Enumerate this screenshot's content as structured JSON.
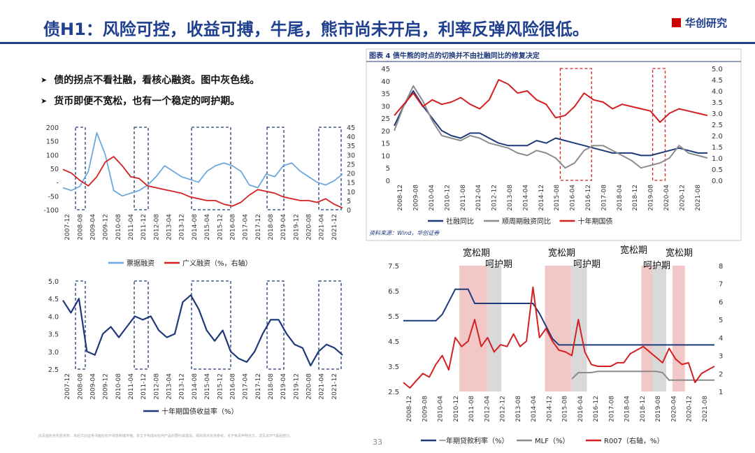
{
  "header": {
    "title": "债H1：风险可控，收益可搏，牛尾，熊市尚未开启，利率反弹风险很低。",
    "brand": "华创研究"
  },
  "bullets": [
    "债的拐点不看社融，看核心融资。图中灰色线。",
    "货币即便不宽松，也有一个稳定的呵护期。"
  ],
  "footer": {
    "disclaimer": "此页面包含机密资料，未经华创证券书面授权不得复制或传播。本文不构成对任何产品的要约或邀请，相关观点仅供参考。关于免责声明全文，详见本PPT最后部分。",
    "page": "33"
  },
  "colors": {
    "dark_blue": "#1f3a7a",
    "light_blue": "#6fa8dc",
    "red": "#d42020",
    "gray": "#8c8c8c",
    "shade_red": "#f2c7c7",
    "shade_gray": "#d9d9d9"
  },
  "chart_data": [
    {
      "id": "top-left",
      "type": "line",
      "x_ticks": [
        "2007-12",
        "2008-08",
        "2009-04",
        "2009-12",
        "2010-08",
        "2011-04",
        "2011-12",
        "2012-08",
        "2013-04",
        "2013-12",
        "2014-08",
        "2015-04",
        "2015-12",
        "2016-08",
        "2017-04",
        "2017-12",
        "2018-08",
        "2019-04",
        "2019-12",
        "2020-08",
        "2021-04",
        "2021-12"
      ],
      "ylim_left": [
        -100,
        200
      ],
      "yticks_left": [
        "200",
        "150",
        "100",
        "50",
        "-",
        "-50",
        "-100"
      ],
      "ylim_right": [
        0,
        45
      ],
      "yticks_right": [
        "45",
        "40",
        "35",
        "30",
        "25",
        "20",
        "15",
        "10",
        "5",
        "0"
      ],
      "series": [
        {
          "name": "票据融资",
          "axis": "left",
          "color": "#6fa8dc",
          "values": [
            -20,
            -30,
            -15,
            40,
            180,
            100,
            -30,
            -50,
            -40,
            -30,
            -10,
            20,
            60,
            40,
            20,
            10,
            0,
            40,
            60,
            70,
            60,
            40,
            -10,
            -20,
            30,
            20,
            60,
            70,
            40,
            20,
            0,
            -10,
            5,
            30
          ]
        },
        {
          "name": "广义融资（%，右轴）",
          "axis": "right",
          "color": "#d42020",
          "values": [
            22,
            20,
            16,
            13,
            18,
            26,
            29,
            24,
            18,
            17,
            13,
            12,
            11,
            10,
            9,
            7,
            6,
            5,
            5,
            3,
            2,
            4,
            8,
            11,
            10,
            9,
            7,
            6,
            5,
            5,
            4,
            6,
            3,
            1
          ]
        }
      ]
    },
    {
      "id": "bottom-left",
      "type": "line",
      "x_ticks": [
        "2007-12",
        "2008-08",
        "2009-04",
        "2009-12",
        "2010-08",
        "2011-04",
        "2011-12",
        "2012-08",
        "2013-04",
        "2013-12",
        "2014-08",
        "2015-04",
        "2015-12",
        "2016-08",
        "2017-04",
        "2017-12",
        "2018-08",
        "2019-04",
        "2019-12",
        "2020-08",
        "2021-04",
        "2021-12"
      ],
      "ylim": [
        2.5,
        5.0
      ],
      "yticks": [
        "5.0",
        "4.5",
        "4.0",
        "3.5",
        "3.0",
        "2.5"
      ],
      "series": [
        {
          "name": "十年期国债收益率（%）",
          "color": "#1f3a7a",
          "values": [
            4.45,
            4.1,
            4.5,
            3.0,
            2.9,
            3.5,
            3.7,
            3.4,
            3.7,
            4.0,
            3.9,
            4.0,
            3.6,
            3.4,
            3.5,
            4.4,
            4.6,
            4.2,
            3.6,
            3.3,
            3.6,
            3.0,
            2.8,
            2.7,
            3.0,
            3.5,
            3.9,
            3.9,
            3.5,
            3.2,
            3.1,
            2.6,
            3.0,
            3.2,
            3.1,
            2.9
          ]
        }
      ]
    },
    {
      "id": "top-right",
      "type": "line",
      "title": "图表 4  债牛熊的时点的切换并不由社融同比的修复决定",
      "source": "资料来源：Wind，华创证券",
      "x_ticks": [
        "2008-12",
        "2009-08",
        "2010-04",
        "2010-12",
        "2011-08",
        "2012-04",
        "2012-12",
        "2013-08",
        "2014-04",
        "2014-12",
        "2015-08",
        "2016-04",
        "2016-12",
        "2017-08",
        "2018-04",
        "2018-12",
        "2019-08",
        "2020-04",
        "2020-12",
        "2021-08"
      ],
      "ylim_left": [
        0,
        45
      ],
      "yticks_left": [
        "45",
        "40",
        "35",
        "30",
        "25",
        "20",
        "15",
        "10",
        "5",
        "0"
      ],
      "ylim_right": [
        0,
        5.0
      ],
      "yticks_right": [
        "5.0",
        "4.5",
        "4.0",
        "3.5",
        "3.0",
        "2.5",
        "2.0",
        "1.5",
        "1.0",
        "0.5",
        "0.0"
      ],
      "series": [
        {
          "name": "社融同比",
          "axis": "left",
          "color": "#1f3a7a",
          "values": [
            22,
            30,
            36,
            30,
            25,
            20,
            18,
            17,
            19,
            19,
            17,
            15,
            14,
            14,
            14,
            16,
            15,
            17,
            16,
            15,
            14,
            13,
            12,
            11,
            11,
            11,
            10,
            10,
            11,
            12,
            13,
            12,
            11,
            11
          ]
        },
        {
          "name": "顺周期融资同比",
          "axis": "left",
          "color": "#8c8c8c",
          "values": [
            20,
            30,
            38,
            32,
            24,
            18,
            17,
            16,
            18,
            17,
            15,
            14,
            13,
            11,
            10,
            12,
            11,
            9,
            5,
            7,
            12,
            14,
            14,
            12,
            10,
            8,
            5,
            6,
            7,
            9,
            14,
            11,
            10,
            9
          ]
        },
        {
          "name": "十年期国债",
          "axis": "right",
          "color": "#d42020",
          "values": [
            2.9,
            3.4,
            3.9,
            3.3,
            3.6,
            3.4,
            3.5,
            3.7,
            3.4,
            3.2,
            3.6,
            4.5,
            4.3,
            3.9,
            4.0,
            3.6,
            3.4,
            2.8,
            2.9,
            3.3,
            3.9,
            3.6,
            3.5,
            3.2,
            3.4,
            3.3,
            3.2,
            3.1,
            2.6,
            3.0,
            3.2,
            3.1,
            3.0,
            2.9
          ]
        }
      ]
    },
    {
      "id": "bottom-right",
      "type": "line",
      "x_ticks": [
        "2008-12",
        "2009-08",
        "2010-04",
        "2010-12",
        "2011-08",
        "2012-04",
        "2012-12",
        "2013-08",
        "2014-04",
        "2014-12",
        "2015-08",
        "2016-04",
        "2016-12",
        "2017-08",
        "2018-04",
        "2018-12",
        "2019-08",
        "2020-04",
        "2020-12",
        "2021-08"
      ],
      "ylim_left": [
        2.5,
        7.5
      ],
      "yticks_left": [
        "7.5",
        "6.5",
        "5.5",
        "4.5",
        "3.5",
        "2.5"
      ],
      "ylim_right": [
        1,
        8
      ],
      "yticks_right": [
        "8",
        "7",
        "6",
        "5",
        "4",
        "3",
        "2",
        "1"
      ],
      "annotations": [
        "宽松期",
        "呵护期",
        "宽松期",
        "呵护期",
        "宽松期",
        "呵护期",
        "宽松期"
      ],
      "series": [
        {
          "name": "一年期贷款利率（%）",
          "axis": "left",
          "color": "#1f3a7a",
          "values": [
            5.31,
            5.31,
            5.31,
            5.31,
            5.31,
            5.31,
            5.56,
            6.06,
            6.56,
            6.56,
            6.56,
            6.0,
            6.0,
            6.0,
            6.0,
            6.0,
            6.0,
            6.0,
            6.0,
            6.0,
            6.0,
            5.6,
            5.1,
            4.6,
            4.35,
            4.35,
            4.35,
            4.35,
            4.35,
            4.35,
            4.35,
            4.35,
            4.35,
            4.35,
            4.35,
            4.35,
            4.35,
            4.35,
            4.35,
            4.35,
            4.35,
            4.35,
            4.35,
            4.35,
            4.35,
            4.35,
            4.35,
            4.35,
            4.35
          ]
        },
        {
          "name": "MLF（%）",
          "axis": "left",
          "color": "#8c8c8c",
          "values": [
            null,
            null,
            null,
            null,
            null,
            null,
            null,
            null,
            null,
            null,
            null,
            null,
            null,
            null,
            null,
            null,
            null,
            null,
            null,
            null,
            null,
            null,
            null,
            null,
            null,
            null,
            3.0,
            3.25,
            3.25,
            3.25,
            3.3,
            3.3,
            3.3,
            3.3,
            3.3,
            3.3,
            3.3,
            3.3,
            3.3,
            3.3,
            3.25,
            2.95,
            2.95,
            2.95,
            2.95,
            2.95,
            2.95,
            2.95,
            2.95
          ]
        },
        {
          "name": "R007（右轴，%）",
          "axis": "right",
          "color": "#d42020",
          "values": [
            1.5,
            1.2,
            1.6,
            2.0,
            1.8,
            2.5,
            3.0,
            2.2,
            4.0,
            3.5,
            3.8,
            5.0,
            3.5,
            4.0,
            3.2,
            3.6,
            3.5,
            4.2,
            3.5,
            3.8,
            6.8,
            4.0,
            4.5,
            3.8,
            3.3,
            3.2,
            3.0,
            5.0,
            3.2,
            2.5,
            2.4,
            2.4,
            2.4,
            2.6,
            2.6,
            3.1,
            3.3,
            3.5,
            3.2,
            2.9,
            2.6,
            3.4,
            2.8,
            2.5,
            2.6,
            1.5,
            2.0,
            2.2,
            2.4
          ]
        }
      ]
    }
  ]
}
